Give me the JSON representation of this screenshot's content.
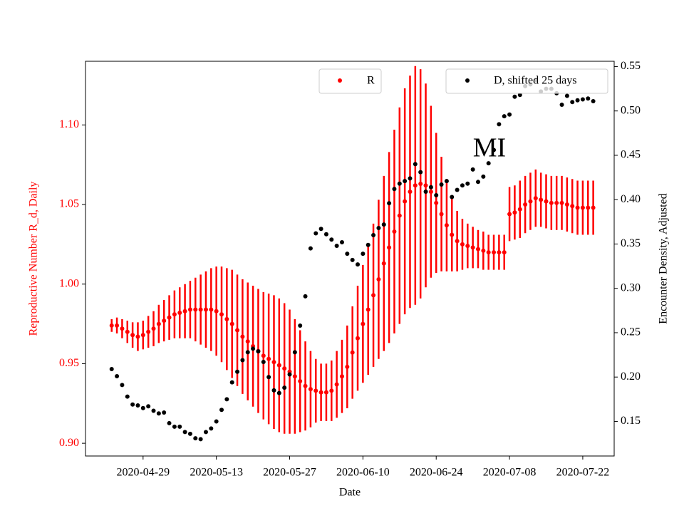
{
  "chart_data": {
    "type": "scatter",
    "x_label": "Date",
    "y_label": "Reproductive Number R_d, Daily",
    "y2_label": "Encounter Density, Adjusted",
    "annotation": "MI",
    "x": [
      "2020-04-23",
      "2020-04-24",
      "2020-04-25",
      "2020-04-26",
      "2020-04-27",
      "2020-04-28",
      "2020-04-29",
      "2020-04-30",
      "2020-05-01",
      "2020-05-02",
      "2020-05-03",
      "2020-05-04",
      "2020-05-05",
      "2020-05-06",
      "2020-05-07",
      "2020-05-08",
      "2020-05-09",
      "2020-05-10",
      "2020-05-11",
      "2020-05-12",
      "2020-05-13",
      "2020-05-14",
      "2020-05-15",
      "2020-05-16",
      "2020-05-17",
      "2020-05-18",
      "2020-05-19",
      "2020-05-20",
      "2020-05-21",
      "2020-05-22",
      "2020-05-23",
      "2020-05-24",
      "2020-05-25",
      "2020-05-26",
      "2020-05-27",
      "2020-05-28",
      "2020-05-29",
      "2020-05-30",
      "2020-05-31",
      "2020-06-01",
      "2020-06-02",
      "2020-06-03",
      "2020-06-04",
      "2020-06-05",
      "2020-06-06",
      "2020-06-07",
      "2020-06-08",
      "2020-06-09",
      "2020-06-10",
      "2020-06-11",
      "2020-06-12",
      "2020-06-13",
      "2020-06-14",
      "2020-06-15",
      "2020-06-16",
      "2020-06-17",
      "2020-06-18",
      "2020-06-19",
      "2020-06-20",
      "2020-06-21",
      "2020-06-22",
      "2020-06-23",
      "2020-06-24",
      "2020-06-25",
      "2020-06-26",
      "2020-06-27",
      "2020-06-28",
      "2020-06-29",
      "2020-06-30",
      "2020-07-01",
      "2020-07-02",
      "2020-07-03",
      "2020-07-04",
      "2020-07-05",
      "2020-07-06",
      "2020-07-07",
      "2020-07-08",
      "2020-07-09",
      "2020-07-10",
      "2020-07-11",
      "2020-07-12",
      "2020-07-13",
      "2020-07-14",
      "2020-07-15",
      "2020-07-16",
      "2020-07-17",
      "2020-07-18",
      "2020-07-19",
      "2020-07-20",
      "2020-07-21",
      "2020-07-22",
      "2020-07-23",
      "2020-07-24"
    ],
    "series": [
      {
        "name": "R",
        "color": "#ff0000",
        "values": [
          0.974,
          0.974,
          0.972,
          0.97,
          0.968,
          0.967,
          0.968,
          0.97,
          0.972,
          0.975,
          0.977,
          0.979,
          0.981,
          0.982,
          0.983,
          0.984,
          0.984,
          0.984,
          0.984,
          0.984,
          0.983,
          0.981,
          0.978,
          0.975,
          0.971,
          0.967,
          0.964,
          0.961,
          0.958,
          0.955,
          0.953,
          0.951,
          0.949,
          0.947,
          0.945,
          0.942,
          0.939,
          0.936,
          0.934,
          0.933,
          0.932,
          0.932,
          0.933,
          0.937,
          0.942,
          0.948,
          0.957,
          0.966,
          0.975,
          0.984,
          0.993,
          1.003,
          1.013,
          1.023,
          1.033,
          1.043,
          1.052,
          1.058,
          1.062,
          1.063,
          1.062,
          1.058,
          1.051,
          1.044,
          1.037,
          1.031,
          1.027,
          1.025,
          1.024,
          1.023,
          1.022,
          1.021,
          1.02,
          1.02,
          1.02,
          1.02,
          1.044,
          1.045,
          1.047,
          1.05,
          1.052,
          1.054,
          1.053,
          1.052,
          1.051,
          1.051,
          1.051,
          1.05,
          1.049,
          1.048,
          1.048,
          1.048,
          1.048
        ],
        "errors": [
          0.004,
          0.005,
          0.006,
          0.007,
          0.008,
          0.009,
          0.009,
          0.01,
          0.011,
          0.012,
          0.013,
          0.014,
          0.015,
          0.016,
          0.017,
          0.018,
          0.02,
          0.022,
          0.024,
          0.026,
          0.028,
          0.03,
          0.032,
          0.034,
          0.035,
          0.036,
          0.037,
          0.038,
          0.039,
          0.04,
          0.041,
          0.042,
          0.042,
          0.041,
          0.039,
          0.036,
          0.032,
          0.028,
          0.024,
          0.02,
          0.018,
          0.018,
          0.019,
          0.021,
          0.023,
          0.026,
          0.029,
          0.033,
          0.037,
          0.041,
          0.045,
          0.05,
          0.055,
          0.06,
          0.064,
          0.068,
          0.071,
          0.073,
          0.075,
          0.072,
          0.064,
          0.054,
          0.044,
          0.036,
          0.029,
          0.023,
          0.019,
          0.016,
          0.014,
          0.013,
          0.012,
          0.012,
          0.011,
          0.011,
          0.011,
          0.011,
          0.017,
          0.017,
          0.018,
          0.018,
          0.018,
          0.018,
          0.017,
          0.017,
          0.017,
          0.017,
          0.017,
          0.017,
          0.017,
          0.017,
          0.017,
          0.017,
          0.017
        ]
      },
      {
        "name": "D, shifted 25 days",
        "color": "#000000",
        "axis": "y2",
        "values": [
          0.209,
          0.201,
          0.191,
          0.178,
          0.169,
          0.168,
          0.165,
          0.167,
          0.162,
          0.159,
          0.16,
          0.148,
          0.144,
          0.144,
          0.138,
          0.136,
          0.131,
          0.13,
          0.138,
          0.142,
          0.15,
          0.163,
          0.175,
          0.194,
          0.206,
          0.219,
          0.228,
          0.232,
          0.229,
          0.217,
          0.2,
          0.185,
          0.182,
          0.188,
          0.203,
          0.228,
          0.258,
          0.291,
          0.345,
          0.362,
          0.367,
          0.361,
          0.355,
          0.348,
          0.352,
          0.339,
          0.332,
          0.327,
          0.339,
          0.349,
          0.36,
          0.368,
          0.372,
          0.396,
          0.412,
          0.418,
          0.421,
          0.424,
          0.44,
          0.431,
          0.409,
          0.414,
          0.405,
          0.417,
          0.421,
          0.403,
          0.411,
          0.416,
          0.418,
          0.434,
          0.42,
          0.426,
          0.441,
          0.456,
          0.485,
          0.494,
          0.496,
          0.516,
          0.518,
          0.528,
          0.53,
          0.535,
          0.522,
          0.525,
          0.525,
          0.52,
          0.507,
          0.517,
          0.51,
          0.512,
          0.513,
          0.514,
          0.511
        ]
      }
    ],
    "xlim": [
      "2020-04-18",
      "2020-07-28"
    ],
    "xticks": [
      "2020-04-29",
      "2020-05-13",
      "2020-05-27",
      "2020-06-10",
      "2020-06-24",
      "2020-07-08",
      "2020-07-22"
    ],
    "ylim": [
      0.892,
      1.14
    ],
    "yticks": [
      {
        "value": 0.9,
        "label": "0.90"
      },
      0.95,
      {
        "value": 1.0,
        "label": "1.00"
      },
      1.05,
      {
        "value": 1.1,
        "label": "1.10"
      }
    ],
    "y_color": "#ff0000",
    "y2lim": [
      0.111,
      0.556
    ],
    "y2ticks": [
      0.15,
      {
        "value": 0.2,
        "label": "0.20"
      },
      0.25,
      {
        "value": 0.3,
        "label": "0.30"
      },
      0.35,
      {
        "value": 0.4,
        "label": "0.40"
      },
      0.45,
      {
        "value": 0.5,
        "label": "0.50"
      },
      0.55
    ],
    "grid": false
  }
}
